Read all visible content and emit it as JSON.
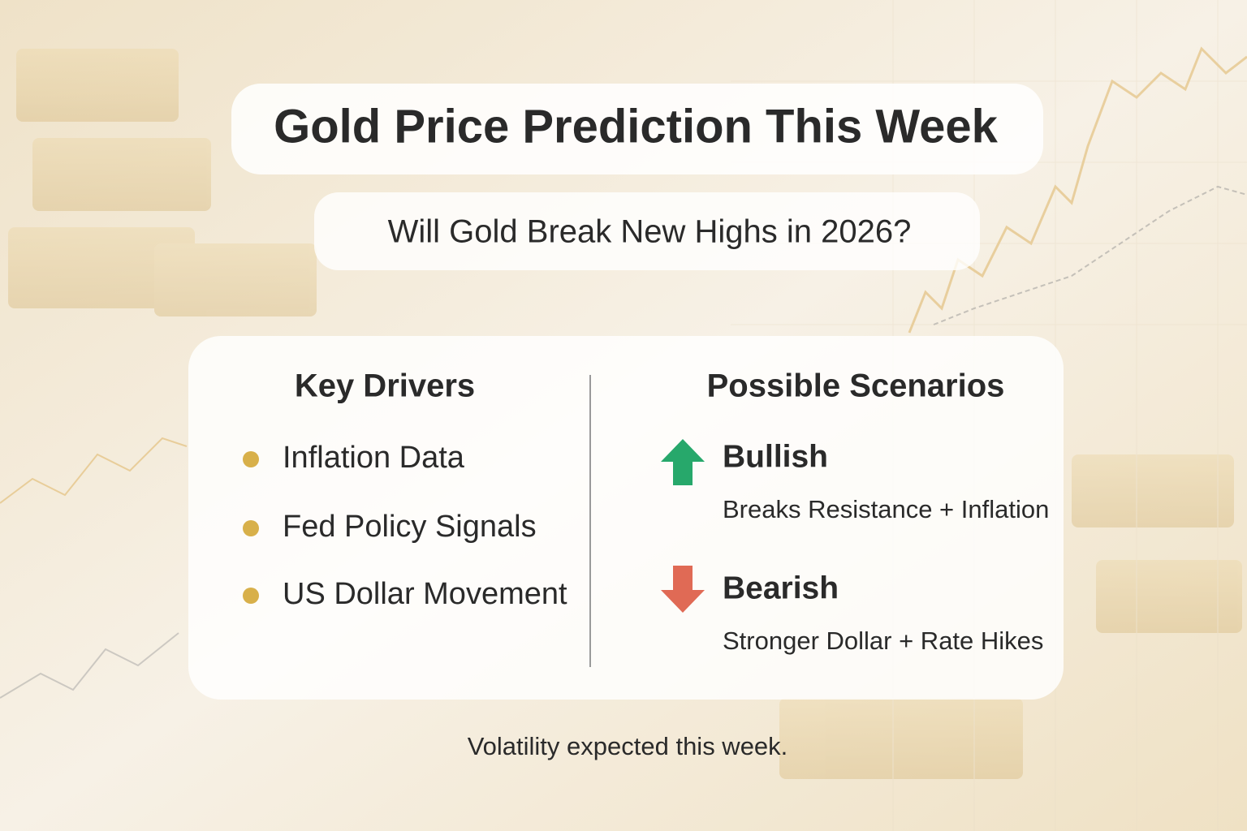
{
  "header": {
    "title": "Gold Price Prediction This Week",
    "subtitle": "Will Gold Break New Highs in 2026?"
  },
  "key_drivers": {
    "heading": "Key Drivers",
    "items": [
      "Inflation Data",
      "Fed Policy Signals",
      "US Dollar Movement"
    ]
  },
  "scenarios": {
    "heading": "Possible Scenarios",
    "items": [
      {
        "label": "Bullish",
        "description": "Breaks Resistance + Inflation"
      },
      {
        "label": "Bearish",
        "description": "Stronger Dollar + Rate Hikes"
      }
    ]
  },
  "footer": "Volatility expected this week."
}
